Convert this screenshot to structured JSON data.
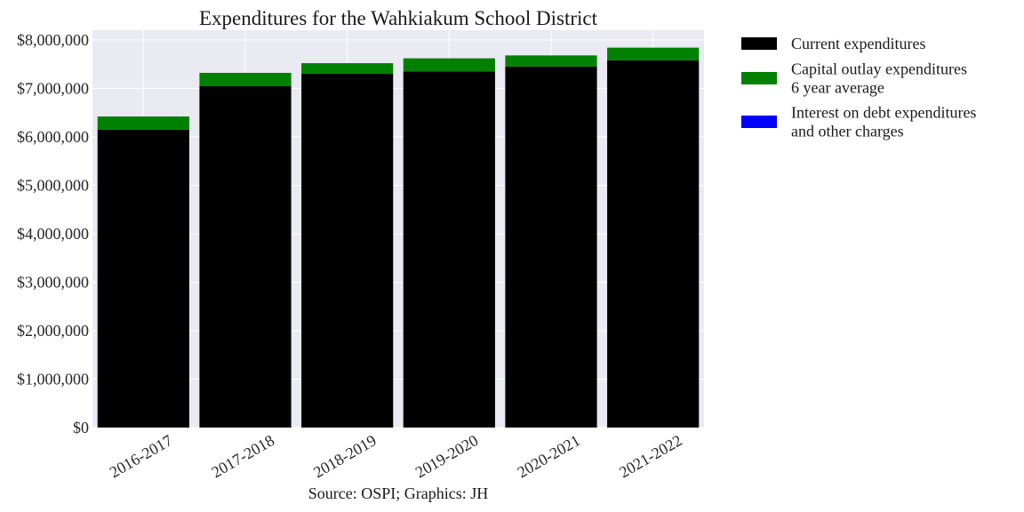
{
  "chart_data": {
    "type": "bar",
    "stacked": true,
    "title": "Expenditures for the Wahkiakum School District",
    "caption": "Source: OSPI; Graphics: JH",
    "categories": [
      "2016-2017",
      "2017-2018",
      "2018-2019",
      "2019-2020",
      "2020-2021",
      "2021-2022"
    ],
    "series": [
      {
        "name": "Current expenditures",
        "color": "#000000",
        "values": [
          6150000,
          7050000,
          7300000,
          7350000,
          7450000,
          7580000
        ]
      },
      {
        "name": "Capital outlay expenditures\n6 year average",
        "color": "#008000",
        "values": [
          270000,
          270000,
          220000,
          270000,
          230000,
          260000
        ]
      },
      {
        "name": "Interest on debt expenditures\nand other charges",
        "color": "#0000ff",
        "values": [
          0,
          0,
          0,
          0,
          0,
          0
        ]
      }
    ],
    "ylim": [
      0,
      8200000
    ],
    "yticks": [
      0,
      1000000,
      2000000,
      3000000,
      4000000,
      5000000,
      6000000,
      7000000,
      8000000
    ],
    "ytick_labels": [
      "$0",
      "$1,000,000",
      "$2,000,000",
      "$3,000,000",
      "$4,000,000",
      "$5,000,000",
      "$6,000,000",
      "$7,000,000",
      "$8,000,000"
    ],
    "xlabel": "",
    "ylabel": "",
    "grid": true,
    "legend_position": "outside-right",
    "colors": {
      "plot_background": "#eaeaf2",
      "grid": "#ffffff"
    }
  }
}
